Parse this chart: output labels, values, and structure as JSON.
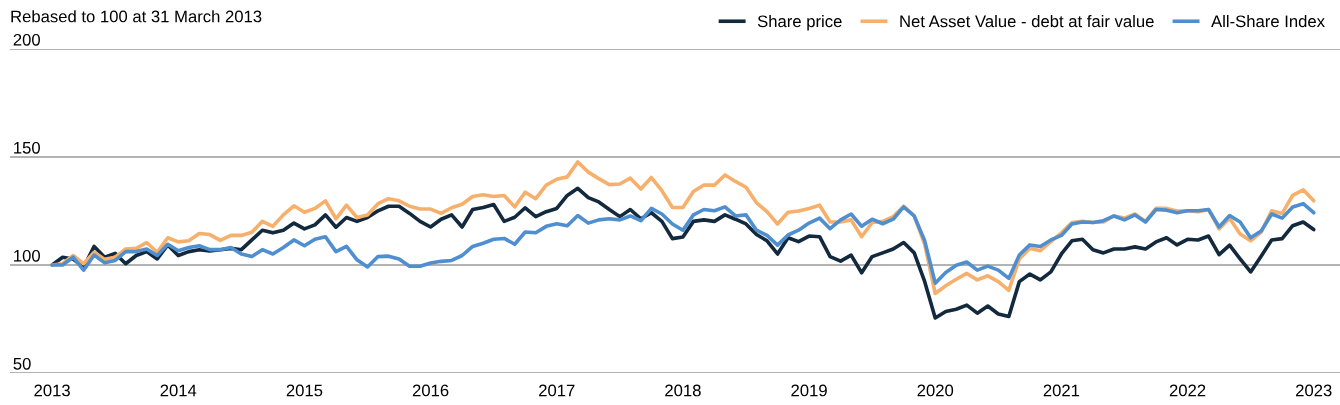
{
  "chart_data": {
    "type": "line",
    "title": "Rebased to 100 at 31 March 2013",
    "categories": [
      "2013",
      null,
      null,
      null,
      null,
      null,
      null,
      null,
      null,
      null,
      null,
      null,
      "2014",
      null,
      null,
      null,
      null,
      null,
      null,
      null,
      null,
      null,
      null,
      null,
      "2015",
      null,
      null,
      null,
      null,
      null,
      null,
      null,
      null,
      null,
      null,
      null,
      "2016",
      null,
      null,
      null,
      null,
      null,
      null,
      null,
      null,
      null,
      null,
      null,
      "2017",
      null,
      null,
      null,
      null,
      null,
      null,
      null,
      null,
      null,
      null,
      null,
      "2018",
      null,
      null,
      null,
      null,
      null,
      null,
      null,
      null,
      null,
      null,
      null,
      "2019",
      null,
      null,
      null,
      null,
      null,
      null,
      null,
      null,
      null,
      null,
      null,
      "2020",
      null,
      null,
      null,
      null,
      null,
      null,
      null,
      null,
      null,
      null,
      null,
      "2021",
      null,
      null,
      null,
      null,
      null,
      null,
      null,
      null,
      null,
      null,
      null,
      "2022",
      null,
      null,
      null,
      null,
      null,
      null,
      null,
      null,
      null,
      null,
      null,
      "2023"
    ],
    "series": [
      {
        "name": "Share price",
        "color": "#13293d",
        "values": [
          100,
          103.6,
          102.8,
          99,
          108.6,
          103.6,
          105.4,
          100.6,
          104.4,
          106.2,
          102.8,
          109.3,
          104.4,
          106.2,
          107.1,
          106.5,
          107.1,
          107.7,
          107.1,
          111.6,
          116.1,
          114.9,
          116.1,
          119.4,
          116.7,
          118.6,
          123.2,
          117.5,
          122,
          120.2,
          122,
          125.1,
          127.2,
          127.2,
          123.9,
          120.2,
          117.6,
          121.2,
          123.2,
          117.6,
          125.7,
          126.6,
          128,
          120.2,
          122.1,
          126.5,
          122.4,
          124.7,
          126.2,
          132.2,
          135.5,
          131.2,
          129.2,
          125.7,
          122.4,
          125.7,
          121.4,
          124.2,
          120.2,
          112.2,
          113,
          120.2,
          120.9,
          120.2,
          123.2,
          121.2,
          119,
          114.1,
          111.2,
          105.1,
          112.6,
          110.8,
          113.4,
          113.1,
          103.9,
          101.8,
          104.6,
          96.4,
          103.9,
          105.6,
          107.4,
          110.4,
          105.6,
          92.3,
          75.5,
          78.5,
          79.5,
          81.4,
          77.7,
          81,
          77.3,
          76.2,
          92.3,
          95.8,
          93.1,
          96.8,
          105.1,
          111.2,
          111.9,
          107.1,
          105.6,
          107.4,
          107.4,
          108.4,
          107.4,
          110.7,
          112.6,
          109.3,
          111.9,
          111.6,
          113.4,
          104.8,
          109.2,
          102.8,
          96.8,
          104.1,
          111.6,
          112.2,
          118.2,
          119.9,
          116.4
        ]
      },
      {
        "name": "Net Asset Value - debt at fair value",
        "color": "#f6b06b",
        "values": [
          100,
          100.6,
          104.4,
          100.6,
          105.9,
          102.6,
          103.6,
          107.4,
          107.7,
          110.4,
          105.9,
          112.6,
          110.7,
          111.2,
          114.6,
          114.1,
          111.4,
          113.7,
          113.7,
          115.2,
          120.2,
          117.9,
          123.2,
          127.4,
          124.4,
          126.2,
          129.7,
          121.4,
          127.7,
          122,
          123.2,
          128.4,
          130.7,
          129.7,
          127.2,
          125.9,
          125.9,
          123.9,
          126.5,
          128.1,
          131.7,
          132.5,
          131.7,
          132.2,
          126.9,
          133.7,
          130.7,
          137,
          139.7,
          140.8,
          147.7,
          143,
          140,
          137.2,
          137.5,
          140.2,
          135.2,
          140.5,
          134.4,
          126.6,
          126.6,
          134,
          137,
          137,
          141.7,
          138.7,
          136,
          128.8,
          124.7,
          119,
          124.4,
          125,
          126.2,
          127.7,
          119.9,
          119.9,
          120.9,
          113.1,
          119.7,
          120.2,
          122.4,
          127.2,
          122.7,
          109.6,
          86.8,
          90.4,
          93.4,
          96.1,
          93.1,
          95,
          92.3,
          88.3,
          102.8,
          107.7,
          106.6,
          110.8,
          114.9,
          119.7,
          120.2,
          119.7,
          119.9,
          122.7,
          121.7,
          123.6,
          120.2,
          126.2,
          126.2,
          125,
          125.1,
          124.7,
          125.7,
          116.7,
          121.7,
          114.4,
          111.2,
          115.2,
          125.1,
          123.9,
          132.2,
          134.8,
          129.7
        ]
      },
      {
        "name": "All-Share Index",
        "color": "#4f8fd0",
        "values": [
          100,
          100,
          103.6,
          97.6,
          104.6,
          101,
          102.1,
          106.2,
          106.2,
          107.4,
          104.4,
          109.6,
          106.6,
          108.1,
          108.9,
          107.1,
          107.1,
          108.1,
          105.1,
          103.9,
          107.1,
          105.1,
          108.1,
          111.6,
          108.9,
          111.9,
          113.1,
          106.2,
          108.6,
          102.4,
          99.1,
          103.9,
          104.1,
          102.8,
          99.4,
          99.4,
          100.9,
          101.7,
          102.1,
          104.4,
          108.6,
          110.1,
          111.9,
          112.3,
          109.6,
          115.3,
          114.9,
          117.9,
          119.1,
          118.2,
          122.9,
          119.4,
          120.9,
          121.4,
          120.9,
          122.7,
          120.5,
          126.2,
          123.6,
          119,
          116.1,
          123.2,
          125.7,
          125.1,
          126.9,
          122.7,
          123.2,
          116.1,
          113.7,
          109.2,
          113.9,
          116.1,
          119.4,
          121.7,
          116.8,
          120.9,
          123.6,
          117.9,
          121.2,
          119.1,
          121.2,
          126.9,
          122.7,
          111.2,
          91.6,
          96.5,
          99.9,
          101.4,
          97.6,
          99.5,
          97.6,
          93.8,
          104.6,
          109.3,
          108.6,
          111.6,
          113.7,
          119,
          119.9,
          119.7,
          120.5,
          122.7,
          120.9,
          123.2,
          119.9,
          125.7,
          125.4,
          124.2,
          125.1,
          125.1,
          125.7,
          117.6,
          122.9,
          119.9,
          112.6,
          115.7,
          123.6,
          121.7,
          126.9,
          128.4,
          124.2
        ]
      }
    ],
    "ylim": [
      50,
      200
    ],
    "yticks": [
      50,
      100,
      150,
      200
    ],
    "grid": "y",
    "legend": "top right",
    "marker": "none",
    "line_style": "solid"
  }
}
